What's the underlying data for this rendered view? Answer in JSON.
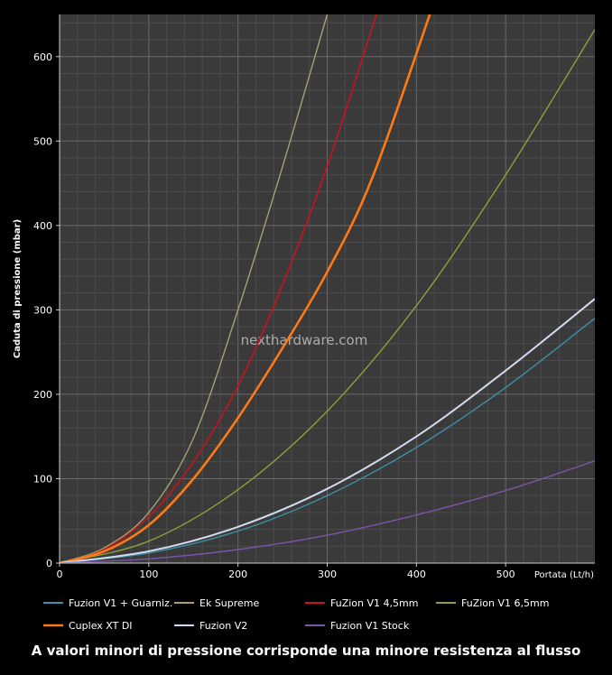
{
  "chart_data": {
    "type": "line",
    "ylabel": "Caduta di pressione (mbar)",
    "xlabel": "Portata (Lt/h)",
    "xlim": [
      0,
      600
    ],
    "ylim": [
      0,
      650
    ],
    "x_ticks": [
      0,
      100,
      200,
      300,
      400,
      500
    ],
    "y_ticks": [
      0,
      100,
      200,
      300,
      400,
      500,
      600
    ],
    "grid": true,
    "legend_position": "bottom",
    "watermark": "nexthardware.com",
    "caption": "A valori minori di pressione corrisponde una minore resistenza al flusso",
    "series": [
      {
        "name": "Fuzion V1 + Guarniz.",
        "color": "#3c8fa6",
        "width": 1.4,
        "x": [
          0,
          100,
          200,
          300,
          400,
          500,
          600
        ],
        "values": [
          0,
          12,
          38,
          80,
          137,
          208,
          290
        ]
      },
      {
        "name": "Ek Supreme",
        "color": "#a89f72",
        "width": 1.4,
        "x": [
          0,
          50,
          100,
          150,
          200,
          250,
          300
        ],
        "values": [
          0,
          18,
          60,
          148,
          300,
          470,
          650
        ]
      },
      {
        "name": "FuZion V1 4,5mm",
        "color": "#c8141c",
        "width": 1.6,
        "x": [
          0,
          50,
          100,
          150,
          200,
          250,
          300,
          355
        ],
        "values": [
          0,
          16,
          55,
          120,
          210,
          330,
          470,
          650
        ]
      },
      {
        "name": "FuZion V1 6,5mm",
        "color": "#8ba239",
        "width": 1.4,
        "x": [
          0,
          100,
          200,
          300,
          400,
          500,
          600
        ],
        "values": [
          0,
          26,
          87,
          180,
          305,
          460,
          632
        ]
      },
      {
        "name": "Cuplex XT DI",
        "color": "#ff7a12",
        "width": 2.6,
        "x": [
          0,
          50,
          100,
          150,
          200,
          250,
          300,
          350,
          415
        ],
        "values": [
          0,
          14,
          45,
          100,
          172,
          255,
          345,
          455,
          650
        ]
      },
      {
        "name": "Fuzion V2",
        "color": "#d3daf0",
        "width": 2.0,
        "x": [
          0,
          100,
          200,
          300,
          400,
          500,
          600
        ],
        "values": [
          0,
          14,
          43,
          88,
          150,
          228,
          313
        ]
      },
      {
        "name": "Fuzion V1 Stock",
        "color": "#7a56a6",
        "width": 1.4,
        "x": [
          0,
          100,
          200,
          300,
          400,
          500,
          600
        ],
        "values": [
          0,
          5,
          16,
          33,
          57,
          86,
          121
        ]
      }
    ]
  }
}
